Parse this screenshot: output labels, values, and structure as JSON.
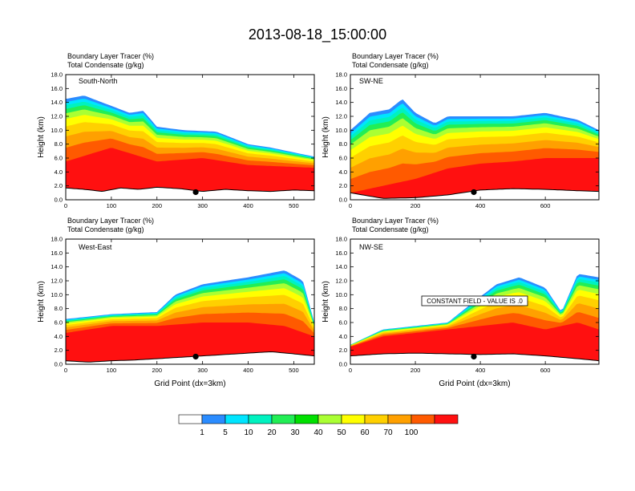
{
  "chart_data": {
    "type": "heatmap",
    "title": "2013-08-18_15:00:00",
    "field_labels": [
      "Boundary Layer Tracer   (%)",
      "Total Condensate   (g/kg)"
    ],
    "colorbar": {
      "levels": [
        "1",
        "5",
        "10",
        "20",
        "30",
        "40",
        "50",
        "60",
        "70",
        "100"
      ],
      "colors": [
        "#ffffff",
        "#2b8cff",
        "#00e5ff",
        "#00f2c0",
        "#22ee55",
        "#00e000",
        "#aaff33",
        "#ffff00",
        "#ffd000",
        "#ffa000",
        "#ff5a00",
        "#ff1010"
      ]
    },
    "panels": [
      {
        "id": "south-north",
        "name": "South-North",
        "xlabel": "",
        "ylabel": "Height (km)",
        "xlim": [
          0,
          545
        ],
        "xticks": [
          0,
          100,
          200,
          300,
          400,
          500
        ],
        "ylim": [
          0,
          18
        ],
        "yticks": [
          "0.0",
          "2.0",
          "4.0",
          "6.0",
          "8.0",
          "10.0",
          "12.0",
          "14.0",
          "16.0",
          "18.0"
        ],
        "marker": {
          "x": 285,
          "y": 1.1
        },
        "terrain": [
          [
            0,
            1.7
          ],
          [
            40,
            1.5
          ],
          [
            80,
            1.2
          ],
          [
            120,
            1.7
          ],
          [
            160,
            1.5
          ],
          [
            200,
            1.8
          ],
          [
            250,
            1.6
          ],
          [
            300,
            1.2
          ],
          [
            350,
            1.5
          ],
          [
            400,
            1.3
          ],
          [
            450,
            1.2
          ],
          [
            500,
            1.4
          ],
          [
            545,
            1.3
          ]
        ],
        "boundary_layer_top": [
          [
            0,
            5.5
          ],
          [
            100,
            7.5
          ],
          [
            200,
            5.5
          ],
          [
            300,
            6.0
          ],
          [
            400,
            5.0
          ],
          [
            545,
            4.6
          ]
        ],
        "cloud_top": [
          [
            0,
            14.5
          ],
          [
            40,
            15.0
          ],
          [
            80,
            14.0
          ],
          [
            140,
            12.5
          ],
          [
            170,
            12.8
          ],
          [
            200,
            10.5
          ],
          [
            260,
            10.0
          ],
          [
            330,
            9.8
          ],
          [
            400,
            8.0
          ],
          [
            450,
            7.5
          ],
          [
            545,
            6.2
          ]
        ]
      },
      {
        "id": "sw-ne",
        "name": "SW-NE",
        "xlabel": "",
        "ylabel": "Height (km)",
        "xlim": [
          0,
          765
        ],
        "xticks": [
          0,
          200,
          400,
          600
        ],
        "ylim": [
          0,
          18
        ],
        "yticks": [
          "0.0",
          "2.0",
          "4.0",
          "6.0",
          "8.0",
          "10.0",
          "12.0",
          "14.0",
          "16.0",
          "18.0"
        ],
        "marker": {
          "x": 380,
          "y": 1.1
        },
        "terrain": [
          [
            0,
            1.0
          ],
          [
            100,
            0.2
          ],
          [
            200,
            0.3
          ],
          [
            300,
            0.7
          ],
          [
            400,
            1.4
          ],
          [
            500,
            1.6
          ],
          [
            600,
            1.5
          ],
          [
            700,
            1.3
          ],
          [
            765,
            1.2
          ]
        ],
        "boundary_layer_top": [
          [
            0,
            1.0
          ],
          [
            100,
            2.0
          ],
          [
            200,
            3.0
          ],
          [
            300,
            4.5
          ],
          [
            400,
            5.2
          ],
          [
            500,
            5.5
          ],
          [
            600,
            6.0
          ],
          [
            765,
            6.0
          ]
        ],
        "cloud_top": [
          [
            0,
            10.0
          ],
          [
            60,
            12.5
          ],
          [
            120,
            13.0
          ],
          [
            160,
            14.5
          ],
          [
            200,
            12.5
          ],
          [
            260,
            11.0
          ],
          [
            300,
            12.0
          ],
          [
            380,
            12.0
          ],
          [
            500,
            12.0
          ],
          [
            600,
            12.5
          ],
          [
            700,
            11.5
          ],
          [
            765,
            10.0
          ]
        ]
      },
      {
        "id": "west-east",
        "name": "West-East",
        "xlabel": "Grid Point (dx=3km)",
        "ylabel": "Height (km)",
        "xlim": [
          0,
          545
        ],
        "xticks": [
          0,
          100,
          200,
          300,
          400,
          500
        ],
        "ylim": [
          0,
          18
        ],
        "yticks": [
          "0.0",
          "2.0",
          "4.0",
          "6.0",
          "8.0",
          "10.0",
          "12.0",
          "14.0",
          "16.0",
          "18.0"
        ],
        "marker": {
          "x": 285,
          "y": 1.1
        },
        "terrain": [
          [
            0,
            0.5
          ],
          [
            50,
            0.3
          ],
          [
            100,
            0.5
          ],
          [
            150,
            0.6
          ],
          [
            200,
            0.8
          ],
          [
            250,
            1.0
          ],
          [
            300,
            1.2
          ],
          [
            350,
            1.4
          ],
          [
            400,
            1.6
          ],
          [
            450,
            1.8
          ],
          [
            500,
            1.5
          ],
          [
            545,
            1.2
          ]
        ],
        "boundary_layer_top": [
          [
            0,
            4.5
          ],
          [
            100,
            5.5
          ],
          [
            200,
            5.5
          ],
          [
            300,
            6.0
          ],
          [
            400,
            6.0
          ],
          [
            480,
            5.5
          ],
          [
            545,
            4.0
          ]
        ],
        "cloud_top": [
          [
            0,
            6.5
          ],
          [
            100,
            7.2
          ],
          [
            200,
            7.5
          ],
          [
            240,
            10.0
          ],
          [
            300,
            11.5
          ],
          [
            400,
            12.5
          ],
          [
            480,
            13.5
          ],
          [
            520,
            12.0
          ],
          [
            545,
            6.0
          ]
        ]
      },
      {
        "id": "nw-se",
        "name": "NW-SE",
        "xlabel": "Grid Point (dx=3km)",
        "ylabel": "Height (km)",
        "xlim": [
          0,
          765
        ],
        "xticks": [
          0,
          200,
          400,
          600
        ],
        "ylim": [
          0,
          18
        ],
        "yticks": [
          "0.0",
          "2.0",
          "4.0",
          "6.0",
          "8.0",
          "10.0",
          "12.0",
          "14.0",
          "16.0",
          "18.0"
        ],
        "marker": {
          "x": 380,
          "y": 1.1
        },
        "annotation": "CONSTANT FIELD - VALUE IS .0",
        "terrain": [
          [
            0,
            1.2
          ],
          [
            100,
            1.5
          ],
          [
            200,
            1.6
          ],
          [
            300,
            1.5
          ],
          [
            400,
            1.4
          ],
          [
            500,
            1.5
          ],
          [
            600,
            1.2
          ],
          [
            700,
            0.8
          ],
          [
            765,
            0.5
          ]
        ],
        "boundary_layer_top": [
          [
            0,
            2.5
          ],
          [
            100,
            4.0
          ],
          [
            200,
            4.5
          ],
          [
            300,
            5.0
          ],
          [
            400,
            5.5
          ],
          [
            500,
            6.0
          ],
          [
            600,
            5.0
          ],
          [
            700,
            6.0
          ],
          [
            765,
            5.0
          ]
        ],
        "cloud_top": [
          [
            0,
            2.8
          ],
          [
            100,
            5.0
          ],
          [
            200,
            5.5
          ],
          [
            300,
            6.0
          ],
          [
            380,
            9.0
          ],
          [
            450,
            11.5
          ],
          [
            520,
            12.5
          ],
          [
            600,
            11.0
          ],
          [
            650,
            7.5
          ],
          [
            700,
            13.0
          ],
          [
            765,
            12.5
          ]
        ]
      }
    ]
  }
}
